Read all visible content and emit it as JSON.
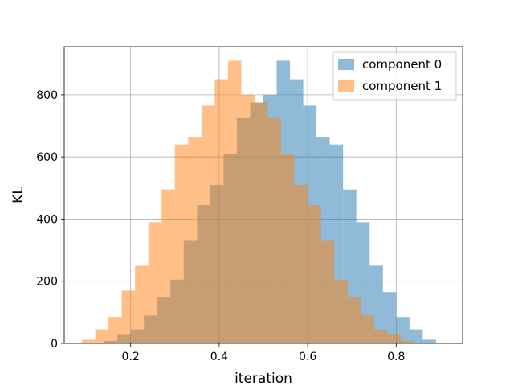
{
  "chart_data": {
    "type": "histogram",
    "xlabel": "iteration",
    "ylabel": "KL",
    "xlim": [
      0.05,
      0.95
    ],
    "ylim": [
      0,
      955
    ],
    "x_ticks": [
      0.2,
      0.4,
      0.6,
      0.8
    ],
    "x_tick_labels": [
      "0.2",
      "0.4",
      "0.6",
      "0.8"
    ],
    "y_ticks": [
      0,
      200,
      400,
      600,
      800
    ],
    "y_tick_labels": [
      "0",
      "200",
      "400",
      "600",
      "800"
    ],
    "grid": true,
    "legend_position": "top-right",
    "series": [
      {
        "name": "component 0",
        "color": "#1f77b4",
        "alpha": 0.5,
        "bins": [
          [
            0.14,
            0.17,
            8
          ],
          [
            0.17,
            0.2,
            30
          ],
          [
            0.2,
            0.23,
            45
          ],
          [
            0.23,
            0.26,
            90
          ],
          [
            0.26,
            0.29,
            150
          ],
          [
            0.29,
            0.32,
            205
          ],
          [
            0.32,
            0.35,
            330
          ],
          [
            0.35,
            0.38,
            445
          ],
          [
            0.38,
            0.41,
            510
          ],
          [
            0.41,
            0.44,
            610
          ],
          [
            0.44,
            0.47,
            725
          ],
          [
            0.47,
            0.5,
            775
          ],
          [
            0.5,
            0.53,
            800
          ],
          [
            0.53,
            0.56,
            910
          ],
          [
            0.56,
            0.59,
            850
          ],
          [
            0.59,
            0.62,
            765
          ],
          [
            0.62,
            0.65,
            665
          ],
          [
            0.65,
            0.68,
            640
          ],
          [
            0.68,
            0.71,
            495
          ],
          [
            0.71,
            0.74,
            390
          ],
          [
            0.74,
            0.77,
            250
          ],
          [
            0.77,
            0.8,
            165
          ],
          [
            0.8,
            0.83,
            85
          ],
          [
            0.83,
            0.86,
            45
          ],
          [
            0.86,
            0.89,
            12
          ]
        ]
      },
      {
        "name": "component 1",
        "color": "#ff7f0e",
        "alpha": 0.5,
        "bins": [
          [
            0.09,
            0.12,
            12
          ],
          [
            0.12,
            0.15,
            45
          ],
          [
            0.15,
            0.18,
            85
          ],
          [
            0.18,
            0.21,
            170
          ],
          [
            0.21,
            0.24,
            250
          ],
          [
            0.24,
            0.27,
            390
          ],
          [
            0.27,
            0.3,
            495
          ],
          [
            0.3,
            0.33,
            640
          ],
          [
            0.33,
            0.36,
            665
          ],
          [
            0.36,
            0.39,
            765
          ],
          [
            0.39,
            0.42,
            850
          ],
          [
            0.42,
            0.45,
            910
          ],
          [
            0.45,
            0.48,
            800
          ],
          [
            0.48,
            0.51,
            775
          ],
          [
            0.51,
            0.54,
            725
          ],
          [
            0.54,
            0.57,
            610
          ],
          [
            0.57,
            0.6,
            510
          ],
          [
            0.6,
            0.63,
            445
          ],
          [
            0.63,
            0.66,
            330
          ],
          [
            0.66,
            0.69,
            205
          ],
          [
            0.69,
            0.72,
            150
          ],
          [
            0.72,
            0.75,
            90
          ],
          [
            0.75,
            0.78,
            45
          ],
          [
            0.78,
            0.81,
            30
          ],
          [
            0.81,
            0.84,
            8
          ]
        ]
      }
    ]
  }
}
